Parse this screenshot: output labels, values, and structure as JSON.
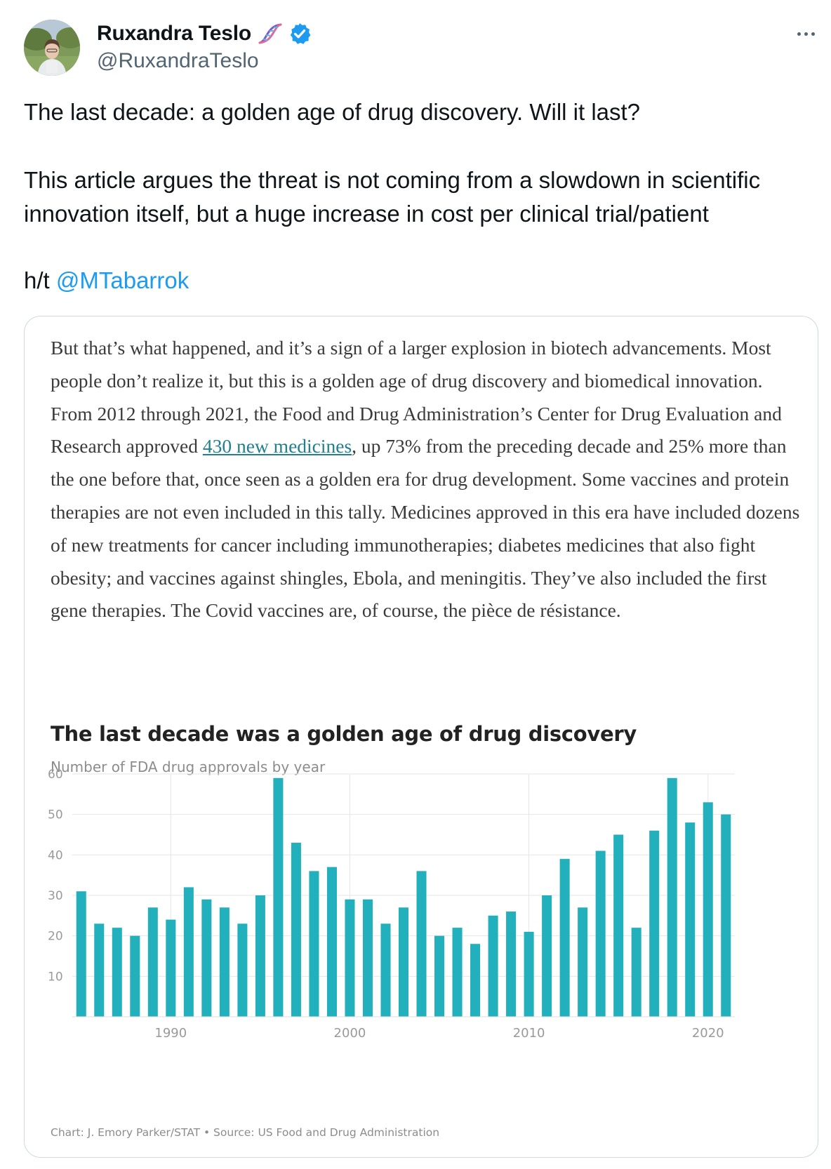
{
  "author": {
    "display_name": "Ruxandra Teslo",
    "handle": "@RuxandraTeslo",
    "name_emoji_icon": "dna-icon",
    "verified_icon": "verified-badge-icon"
  },
  "tweet": {
    "line1": "The last decade: a golden age of drug discovery. Will it last?",
    "line2": "This article argues the threat is not coming from a slowdown in scientific innovation itself, but a huge increase in cost per clinical trial/patient",
    "hat_tip_prefix": "h/t",
    "hat_tip_mention": "@MTabarrok"
  },
  "article": {
    "text_before_link": "But that’s what happened, and it’s a sign of a larger explosion in biotech advancements. Most people don’t realize it, but this is a golden age of drug discovery and biomedical innovation. From 2012 through 2021, the Food and Drug Administration’s Center for Drug Evaluation and Research approved ",
    "link_text": "430 new medicines",
    "text_after_link": ", up 73% from the preceding decade and 25% more than the one before that, once seen as a golden era for drug development. Some vaccines and protein therapies are not even included in this tally. Medicines approved in this era have included dozens of new treatments for cancer including immunotherapies; diabetes medicines that also fight obesity; and vaccines against shingles, Ebola, and meningitis. They’ve also included the first gene therapies. The Covid vaccines are, of course, the pièce de résistance."
  },
  "chart_data": {
    "type": "bar",
    "title": "The last decade was a golden age of drug discovery",
    "subtitle": "Number of FDA drug approvals by year",
    "source": "Chart: J. Emory Parker/STAT • Source: US Food and Drug Administration",
    "color": "#22b0bd",
    "x": [
      1985,
      1986,
      1987,
      1988,
      1989,
      1990,
      1991,
      1992,
      1993,
      1994,
      1995,
      1996,
      1997,
      1998,
      1999,
      2000,
      2001,
      2002,
      2003,
      2004,
      2005,
      2006,
      2007,
      2008,
      2009,
      2010,
      2011,
      2012,
      2013,
      2014,
      2015,
      2016,
      2017,
      2018,
      2019,
      2020,
      2021
    ],
    "values": [
      31,
      23,
      22,
      20,
      27,
      24,
      32,
      29,
      27,
      23,
      30,
      59,
      43,
      36,
      37,
      29,
      29,
      23,
      27,
      36,
      20,
      22,
      18,
      25,
      26,
      21,
      30,
      39,
      27,
      41,
      45,
      22,
      46,
      59,
      48,
      53,
      50
    ],
    "x_ticks": [
      1990,
      2000,
      2010,
      2020
    ],
    "y_ticks": [
      10,
      20,
      30,
      40,
      50,
      60
    ],
    "ylim": [
      0,
      60
    ],
    "grid": true
  }
}
